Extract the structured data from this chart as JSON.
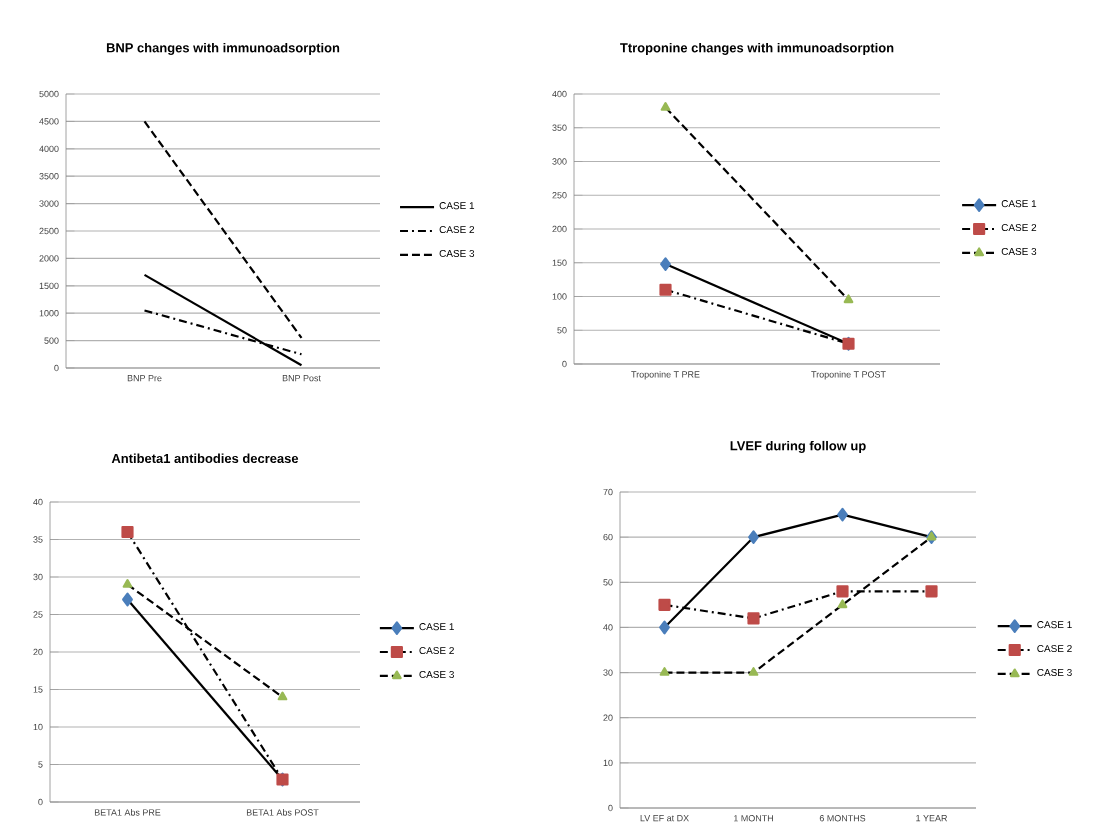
{
  "chart_data": [
    {
      "type": "line",
      "title": "BNP changes with immunoadsorption",
      "categories": [
        "BNP Pre",
        "BNP Post"
      ],
      "ylim": [
        0,
        5000
      ],
      "yticks": [
        0,
        500,
        1000,
        1500,
        2000,
        2500,
        3000,
        3500,
        4000,
        4500,
        5000
      ],
      "grid": "y",
      "legend": "right",
      "marker": "none",
      "series": [
        {
          "name": "CASE 1",
          "color": "#000000",
          "line_style": "solid",
          "values": [
            1700,
            50
          ]
        },
        {
          "name": "CASE 2",
          "color": "#000000",
          "line_style": "dashdot",
          "values": [
            1050,
            250
          ]
        },
        {
          "name": "CASE 3",
          "color": "#000000",
          "line_style": "dashed",
          "values": [
            4500,
            550
          ]
        }
      ]
    },
    {
      "type": "line",
      "title": "Ttroponine changes with immunoadsorption",
      "categories": [
        "Troponine T PRE",
        "Troponine T POST"
      ],
      "ylim": [
        0,
        400
      ],
      "yticks": [
        0,
        50,
        100,
        150,
        200,
        250,
        300,
        350,
        400
      ],
      "grid": "y",
      "legend": "right",
      "series": [
        {
          "name": "CASE 1",
          "color": "#4a7ebb",
          "marker": "diamond",
          "line_style": "solid",
          "values": [
            148,
            30
          ]
        },
        {
          "name": "CASE 2",
          "color": "#be4b48",
          "marker": "square",
          "line_style": "dashdot",
          "values": [
            110,
            30
          ]
        },
        {
          "name": "CASE 3",
          "color": "#98b954",
          "marker": "triangle",
          "line_style": "dashed",
          "values": [
            380,
            95
          ]
        }
      ]
    },
    {
      "type": "line",
      "title": "Antibeta1 antibodies decrease",
      "categories": [
        "BETA1 Abs PRE",
        "BETA1 Abs POST"
      ],
      "ylim": [
        0,
        40
      ],
      "yticks": [
        0,
        5,
        10,
        15,
        20,
        25,
        30,
        35,
        40
      ],
      "grid": "y",
      "legend": "right",
      "series": [
        {
          "name": "CASE 1",
          "color": "#4a7ebb",
          "marker": "diamond",
          "line_style": "solid",
          "values": [
            27,
            3
          ]
        },
        {
          "name": "CASE 2",
          "color": "#be4b48",
          "marker": "square",
          "line_style": "dashdot",
          "values": [
            36,
            3
          ]
        },
        {
          "name": "CASE 3",
          "color": "#98b954",
          "marker": "triangle",
          "line_style": "dashed",
          "values": [
            29,
            14
          ]
        }
      ]
    },
    {
      "type": "line",
      "title": "LVEF during follow up",
      "categories": [
        "LV EF at DX",
        "1 MONTH",
        "6 MONTHS",
        "1 YEAR"
      ],
      "ylim": [
        0,
        70
      ],
      "yticks": [
        0,
        10,
        20,
        30,
        40,
        50,
        60,
        70
      ],
      "grid": "y",
      "legend": "right",
      "series": [
        {
          "name": "CASE 1",
          "color": "#4a7ebb",
          "marker": "diamond",
          "line_style": "solid",
          "values": [
            40,
            60,
            65,
            60
          ]
        },
        {
          "name": "CASE 2",
          "color": "#be4b48",
          "marker": "square",
          "line_style": "dashdot",
          "values": [
            45,
            42,
            48,
            48
          ]
        },
        {
          "name": "CASE 3",
          "color": "#98b954",
          "marker": "triangle",
          "line_style": "dashed",
          "values": [
            30,
            30,
            45,
            60
          ]
        }
      ]
    }
  ]
}
